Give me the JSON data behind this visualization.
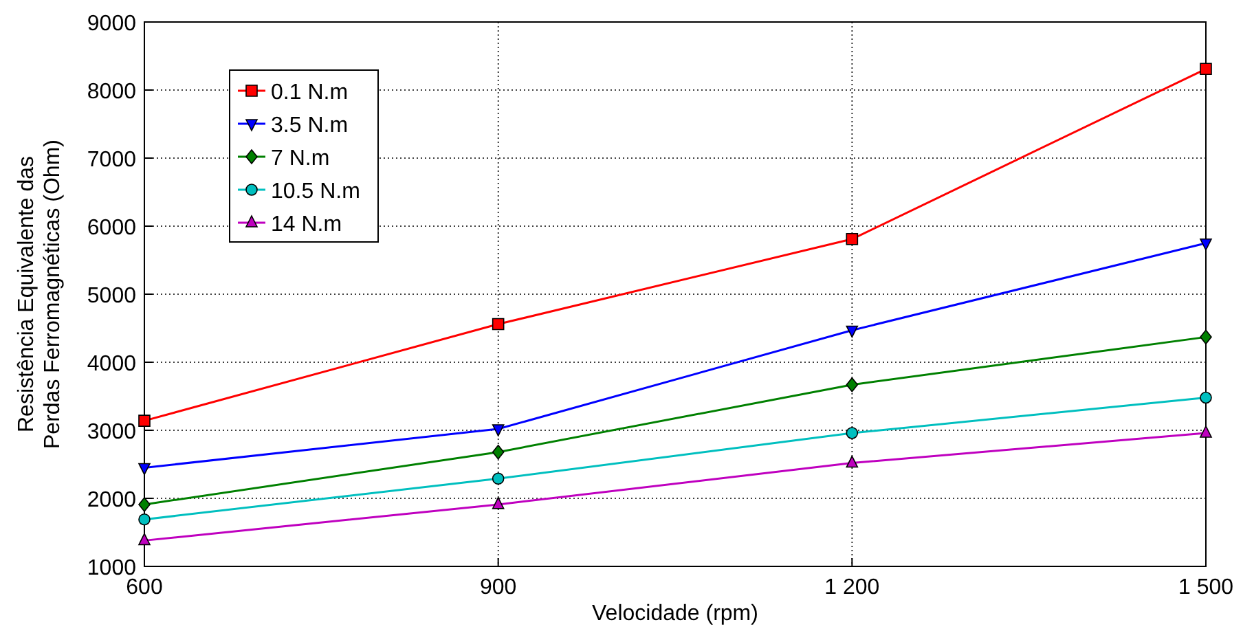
{
  "chart_data": {
    "type": "line",
    "xlabel": "Velocidade (rpm)",
    "ylabel": "Resistência Equivalente das\nPerdas Ferromagnéticas (Ohm)",
    "x": [
      600,
      900,
      1200,
      1500
    ],
    "xlim": [
      600,
      1500
    ],
    "xticks": [
      600,
      900,
      {
        "value": 1200,
        "label": "1 200"
      },
      {
        "value": 1500,
        "label": "1 500"
      }
    ],
    "ylim": [
      1000,
      9000
    ],
    "yticks": [
      1000,
      2000,
      3000,
      4000,
      5000,
      6000,
      7000,
      8000,
      9000
    ],
    "grid": true,
    "legend": "top left",
    "line_style": "solid",
    "series": [
      {
        "name": "0.1 N.m",
        "color": "#ff0000",
        "marker": "square",
        "values": [
          3140,
          4560,
          5810,
          8310
        ]
      },
      {
        "name": "3.5 N.m",
        "color": "#0000ff",
        "marker": "triangle-down",
        "values": [
          2450,
          3020,
          4470,
          5750
        ]
      },
      {
        "name": "7 N.m",
        "color": "#008000",
        "marker": "diamond",
        "values": [
          1910,
          2680,
          3670,
          4370
        ]
      },
      {
        "name": "10.5 N.m",
        "color": "#00bfbf",
        "marker": "circle",
        "values": [
          1690,
          2290,
          2960,
          3480
        ]
      },
      {
        "name": "14 N.m",
        "color": "#bf00bf",
        "marker": "triangle",
        "values": [
          1380,
          1910,
          2520,
          2960
        ]
      }
    ]
  }
}
